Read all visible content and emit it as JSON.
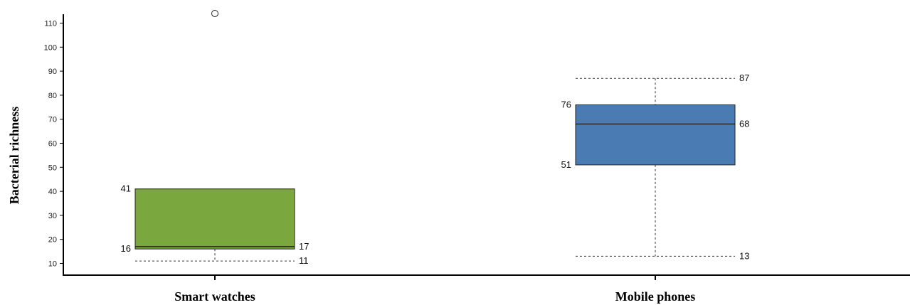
{
  "chart_data": {
    "type": "box",
    "title": "",
    "xlabel": "",
    "ylabel": "Bacterial richness",
    "ylim": [
      7,
      114.5
    ],
    "yticks": [
      10,
      20,
      30,
      40,
      50,
      60,
      70,
      80,
      90,
      100,
      110
    ],
    "grid": false,
    "categories": [
      "Smart watches",
      "Mobile phones"
    ],
    "boxes": [
      {
        "category": "Smart watches",
        "color": "#7aa83f",
        "whisker_low": 11,
        "q1": 16,
        "median": 17,
        "q3": 41,
        "whisker_high": null,
        "outliers": [
          114
        ],
        "labels": {
          "q3": "41",
          "q1": "16",
          "median": "17",
          "whisker_low": "11"
        }
      },
      {
        "category": "Mobile phones",
        "color": "#4a7bb3",
        "whisker_low": 13,
        "q1": 51,
        "median": 68,
        "q3": 76,
        "whisker_high": 87,
        "outliers": [],
        "labels": {
          "q3": "76",
          "q1": "51",
          "median": "68",
          "whisker_low": "13",
          "whisker_high": "87"
        }
      }
    ]
  }
}
